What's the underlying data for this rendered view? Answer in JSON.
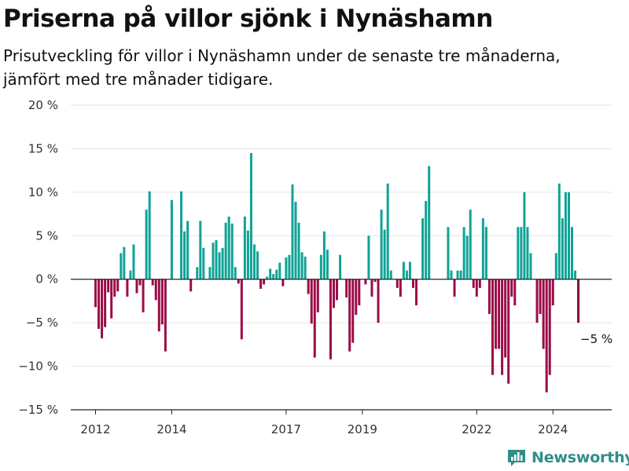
{
  "title": "Priserna på villor sjönk i Nynäshamn",
  "subtitle_line1": "Prisutveckling för villor i Nynäshamn under de senaste tre månaderna,",
  "subtitle_line2": "jämfört med tre månader tidigare.",
  "brand": "Newsworthy",
  "colors": {
    "positive": "#0fa396",
    "negative": "#9b0c47",
    "highlight": "#8a0038",
    "grid": "#e3e3e3",
    "zero": "#222222",
    "brand": "#2e8f88"
  },
  "chart_data": {
    "type": "bar",
    "y_unit": "%",
    "ylim": [
      -15,
      20
    ],
    "y_ticks": [
      -15,
      -10,
      -5,
      0,
      5,
      10,
      15,
      20
    ],
    "y_tick_labels": [
      "−15 %",
      "−10 %",
      "−5 %",
      "0 %",
      "5 %",
      "10 %",
      "15 %",
      "20 %"
    ],
    "x_tick_labels": [
      "2012",
      "2014",
      "2017",
      "2019",
      "2022",
      "2024"
    ],
    "x_start_month": "2012-01",
    "grid": true,
    "annotation": "−5 %",
    "series": [
      {
        "values": [
          -3.2,
          -5.7,
          -6.8,
          -5.5,
          -1.5,
          -4.5,
          -2,
          -1.4,
          3,
          3.7,
          -2,
          1,
          4,
          -1.6,
          -0.7,
          -3.8,
          8,
          10.1,
          -0.7,
          -2.4,
          -6,
          -5.2,
          -8.3,
          0,
          9.1,
          0,
          0,
          10.1,
          5.5,
          6.7,
          -1.4,
          0,
          1.4,
          6.7,
          3.6,
          0,
          1.4,
          4.2,
          4.5,
          3.1,
          3.6,
          6.5,
          7.2,
          6.4,
          1.4,
          -0.5,
          -6.9,
          7.2,
          5.6,
          14.5,
          4,
          3.2,
          -1.1,
          -0.6,
          0.3,
          1.2,
          0.6,
          1.1,
          1.9,
          -0.8,
          2.5,
          2.8,
          10.9,
          8.9,
          6.5,
          3.1,
          2.6,
          -1.7,
          -5.1,
          -9,
          -3.8,
          2.8,
          5.5,
          3.4,
          -9.2,
          -3.3,
          -2.4,
          2.8,
          0,
          -2.1,
          -8.3,
          -7.3,
          -4.1,
          -3,
          0,
          -0.6,
          5,
          -2,
          -0.3,
          -5,
          8,
          5.7,
          11,
          1,
          0,
          -1,
          -2,
          2,
          1,
          2,
          -1,
          -3,
          0,
          7,
          9,
          13,
          0,
          0,
          0,
          0,
          0,
          6,
          1,
          -2,
          1,
          1,
          6,
          5,
          8,
          -1,
          -2,
          -1,
          7,
          6,
          -4,
          -11,
          -8,
          -8,
          -11,
          -9,
          -12,
          -2,
          -3,
          6,
          6,
          10,
          6,
          3,
          0,
          -5,
          -4,
          -8,
          -13,
          -11,
          -3,
          3,
          11,
          7,
          10,
          10,
          6,
          1,
          -5
        ]
      }
    ]
  }
}
